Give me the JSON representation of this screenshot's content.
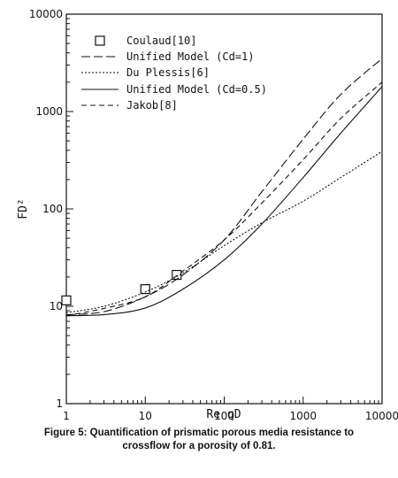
{
  "chart_data": {
    "type": "line",
    "x_scale": "log",
    "y_scale": "log",
    "xlim": [
      1,
      10000
    ],
    "ylim": [
      1,
      10000
    ],
    "xlabel": "Re qD",
    "ylabel": "FD²",
    "x_ticks": [
      "1",
      "10",
      "100",
      "1000",
      "10000"
    ],
    "y_ticks": [
      "1",
      "10",
      "100",
      "1000",
      "10000"
    ],
    "legend_position": "top-left",
    "series": [
      {
        "name": "Coulaud[10]",
        "style": "markers-square",
        "points": [
          [
            1,
            11.5
          ],
          [
            10,
            15
          ],
          [
            25,
            21
          ]
        ]
      },
      {
        "name": "Unified Model (Cd=1)",
        "style": "long-dash",
        "points": [
          [
            1,
            8.2
          ],
          [
            3,
            8.8
          ],
          [
            10,
            12.5
          ],
          [
            30,
            21
          ],
          [
            100,
            48
          ],
          [
            300,
            150
          ],
          [
            1000,
            520
          ],
          [
            3000,
            1500
          ],
          [
            10000,
            3500
          ]
        ]
      },
      {
        "name": "Du Plessis[6]",
        "style": "dotted",
        "points": [
          [
            1,
            8.6
          ],
          [
            3,
            10
          ],
          [
            10,
            14
          ],
          [
            30,
            22
          ],
          [
            100,
            42
          ],
          [
            300,
            72
          ],
          [
            1000,
            120
          ],
          [
            3000,
            210
          ],
          [
            10000,
            390
          ]
        ]
      },
      {
        "name": "Unified Model (Cd=0.5)",
        "style": "solid",
        "points": [
          [
            1,
            8.0
          ],
          [
            3,
            8.2
          ],
          [
            10,
            9.6
          ],
          [
            30,
            15
          ],
          [
            100,
            30
          ],
          [
            300,
            70
          ],
          [
            1000,
            210
          ],
          [
            3000,
            600
          ],
          [
            10000,
            1800
          ]
        ]
      },
      {
        "name": "Jakob[8]",
        "style": "dashed",
        "points": [
          [
            1,
            8.0
          ],
          [
            3,
            9.5
          ],
          [
            10,
            12.5
          ],
          [
            30,
            23
          ],
          [
            100,
            48
          ],
          [
            300,
            115
          ],
          [
            1000,
            320
          ],
          [
            3000,
            850
          ],
          [
            10000,
            2000
          ]
        ]
      }
    ]
  },
  "legend": {
    "coulaud": "Coulaud[10]",
    "unified_cd1": "Unified Model (Cd=1)",
    "du_plessis": "Du Plessis[6]",
    "unified_cd05": "Unified Model (Cd=0.5)",
    "jakob": "Jakob[8]"
  },
  "caption": {
    "line1": "Figure 5: Quantification of prismatic porous media resistance to",
    "line2": "crossflow for a porosity of 0.81."
  }
}
